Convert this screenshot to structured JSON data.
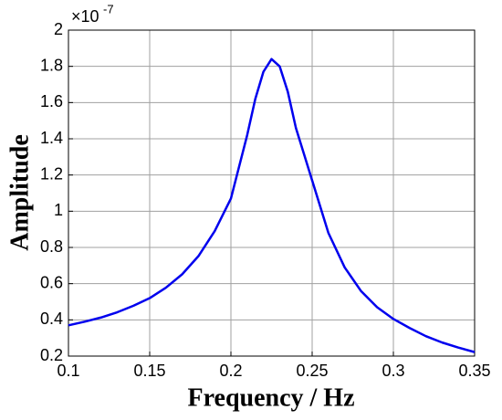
{
  "chart_data": {
    "type": "line",
    "x_label": "Frequency / Hz",
    "y_label": "Amplitude",
    "y_multiplier": "×10",
    "y_exponent": "-7",
    "x": [
      0.1,
      0.11,
      0.12,
      0.13,
      0.14,
      0.15,
      0.16,
      0.17,
      0.18,
      0.19,
      0.2,
      0.21,
      0.215,
      0.22,
      0.225,
      0.23,
      0.235,
      0.24,
      0.25,
      0.26,
      0.27,
      0.28,
      0.29,
      0.3,
      0.31,
      0.32,
      0.33,
      0.34,
      0.35
    ],
    "series": [
      {
        "name": "Amplitude",
        "color": "#0000ee",
        "values": [
          0.37,
          0.39,
          0.413,
          0.442,
          0.478,
          0.52,
          0.578,
          0.652,
          0.752,
          0.89,
          1.07,
          1.42,
          1.62,
          1.77,
          1.84,
          1.8,
          1.66,
          1.46,
          1.17,
          0.88,
          0.69,
          0.56,
          0.47,
          0.405,
          0.355,
          0.31,
          0.275,
          0.247,
          0.222
        ]
      }
    ],
    "xlim": [
      0.1,
      0.35
    ],
    "xticks": [
      0.1,
      0.15,
      0.2,
      0.25,
      0.3,
      0.35
    ],
    "ylim": [
      0.2,
      2
    ],
    "yticks": [
      0.2,
      0.4,
      0.6,
      0.8,
      1,
      1.2,
      1.4,
      1.6,
      1.8,
      2
    ],
    "grid": true
  }
}
